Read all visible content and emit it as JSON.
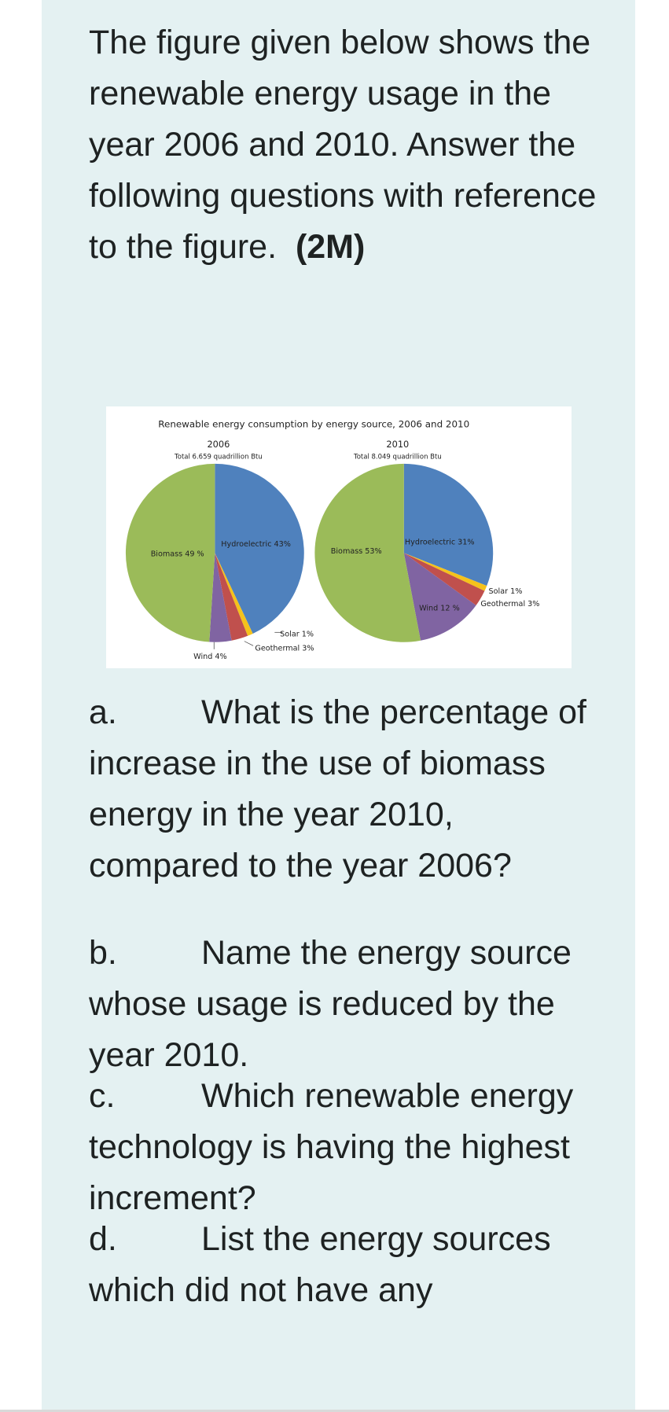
{
  "question": {
    "intro": "The figure given below shows the renewable energy usage in the year 2006 and 2010. Answer the following questions with reference to the figure.",
    "marks": "(2M)"
  },
  "chart_data": {
    "type": "pie",
    "title": "Renewable energy consumption by energy source, 2006 and 2010",
    "pies": [
      {
        "title": "2006",
        "subtitle": "Total 6.659 quadrillion Btu",
        "values": [
          43,
          1,
          3,
          4,
          49
        ],
        "value_labels": [
          "Hydroelectric 43%",
          "Solar 1%",
          "Geothermal 3%",
          "Wind 4%",
          "Biomass 49 %"
        ],
        "colors": [
          "#4f81bd",
          "#f5c21b",
          "#c0504d",
          "#8064a2",
          "#9bbb59"
        ]
      },
      {
        "title": "2010",
        "subtitle": "Total 8.049 quadrillion Btu",
        "values": [
          31,
          1,
          3,
          12,
          53
        ],
        "value_labels": [
          "Hydroelectric 31%",
          "Solar 1%",
          "Geothermal 3%",
          "Wind 12 %",
          "Biomass 53%"
        ],
        "colors": [
          "#4f81bd",
          "#f5c21b",
          "#c0504d",
          "#8064a2",
          "#9bbb59"
        ]
      }
    ]
  },
  "parts": [
    {
      "label": "a.",
      "text": "What is the percentage of increase in the use of biomass energy in the year 2010, compared to the year 2006?"
    },
    {
      "label": "b.",
      "text": "Name the energy source whose usage is reduced by the year 2010."
    },
    {
      "label": "c.",
      "text": "Which renewable energy technology is having the highest increment?"
    },
    {
      "label": "d.",
      "text": "List the energy sources which did not have any"
    }
  ]
}
